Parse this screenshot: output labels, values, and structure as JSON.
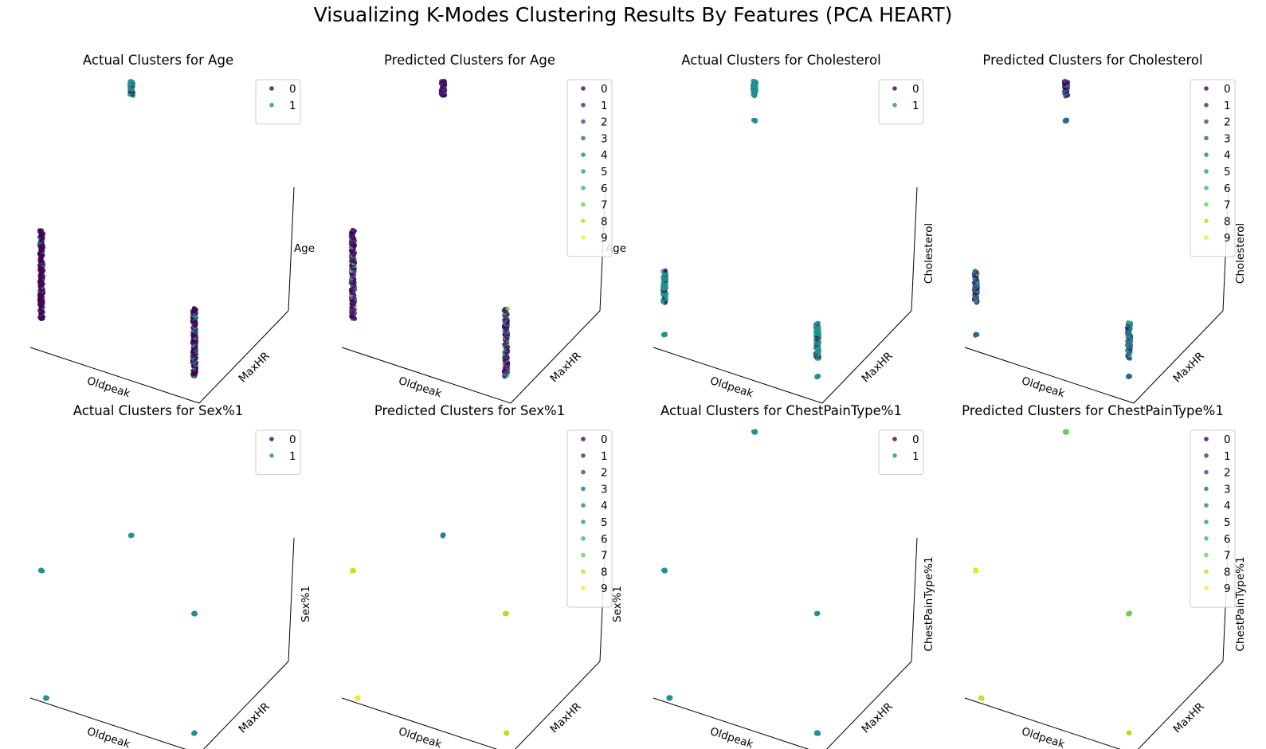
{
  "figure": {
    "title": "Visualizing K-Modes Clustering Results By Features (PCA HEART)"
  },
  "palette": {
    "k2": [
      "#440154",
      "#21918c"
    ],
    "k10": [
      "#440154",
      "#482878",
      "#3e4989",
      "#31688e",
      "#26828e",
      "#1f9e89",
      "#35b779",
      "#6ece58",
      "#b5de2b",
      "#fde725"
    ]
  },
  "chart_data": [
    {
      "type": "scatter",
      "projection": "3d",
      "title": "Actual Clusters for Age",
      "xlabel": "Oldpeak",
      "ylabel": "MaxHR",
      "zlabel": "Age",
      "legend": {
        "placement": "top-right",
        "entries": [
          "0",
          "1"
        ]
      },
      "groups": [
        {
          "label": "left column",
          "x": 0.0,
          "y": 0.0,
          "z_min": 0.22,
          "z_max": 0.92,
          "mix": [
            0.92,
            0.08
          ]
        },
        {
          "label": "middle column",
          "x": 0.72,
          "y": 1.0,
          "z_min": 0.86,
          "z_max": 1.0,
          "mix": [
            0.15,
            0.85
          ]
        },
        {
          "label": "right column",
          "x": 1.0,
          "y": 0.0,
          "z_min": 0.05,
          "z_max": 0.62,
          "mix": [
            0.7,
            0.3
          ]
        }
      ]
    },
    {
      "type": "scatter",
      "projection": "3d",
      "title": "Predicted Clusters for Age",
      "xlabel": "Oldpeak",
      "ylabel": "MaxHR",
      "zlabel": "Age",
      "legend": {
        "placement": "top-right",
        "entries": [
          "0",
          "1",
          "2",
          "3",
          "4",
          "5",
          "6",
          "7",
          "8",
          "9"
        ]
      },
      "groups": [
        {
          "label": "left column",
          "x": 0.0,
          "y": 0.0,
          "z_min": 0.22,
          "z_max": 0.92,
          "mix": [
            0.4,
            0.3,
            0.15,
            0.05,
            0.02,
            0.02,
            0.02,
            0.02,
            0.01,
            0.01
          ]
        },
        {
          "label": "middle column",
          "x": 0.72,
          "y": 1.0,
          "z_min": 0.86,
          "z_max": 1.0,
          "mix": [
            0.5,
            0.35,
            0.15,
            0,
            0,
            0,
            0,
            0,
            0,
            0
          ]
        },
        {
          "label": "right column",
          "x": 1.0,
          "y": 0.0,
          "z_min": 0.05,
          "z_max": 0.62,
          "mix": [
            0.3,
            0.25,
            0.15,
            0.1,
            0.05,
            0.05,
            0.04,
            0.03,
            0.03,
            0
          ]
        }
      ]
    },
    {
      "type": "scatter",
      "projection": "3d",
      "title": "Actual Clusters for Cholesterol",
      "xlabel": "Oldpeak",
      "ylabel": "MaxHR",
      "zlabel": "Cholesterol",
      "legend": {
        "placement": "top-right",
        "entries": [
          "0",
          "1"
        ]
      },
      "groups": [
        {
          "label": "left column",
          "x": 0.0,
          "y": 0.0,
          "z_min": 0.35,
          "z_max": 0.6,
          "mix": [
            0.1,
            0.9
          ]
        },
        {
          "label": "left low point",
          "x": 0.0,
          "y": 0.0,
          "z_min": 0.1,
          "z_max": 0.1,
          "mix": [
            0,
            1
          ]
        },
        {
          "label": "middle column",
          "x": 0.72,
          "y": 1.0,
          "z_min": 0.86,
          "z_max": 1.0,
          "mix": [
            0,
            1
          ]
        },
        {
          "label": "middle low point",
          "x": 0.72,
          "y": 1.0,
          "z_min": 0.62,
          "z_max": 0.62,
          "mix": [
            0,
            1
          ]
        },
        {
          "label": "right column",
          "x": 1.0,
          "y": 0.0,
          "z_min": 0.2,
          "z_max": 0.5,
          "mix": [
            0.1,
            0.9
          ]
        },
        {
          "label": "right low point",
          "x": 1.0,
          "y": 0.0,
          "z_min": 0.05,
          "z_max": 0.05,
          "mix": [
            0,
            1
          ]
        }
      ]
    },
    {
      "type": "scatter",
      "projection": "3d",
      "title": "Predicted Clusters for Cholesterol",
      "xlabel": "Oldpeak",
      "ylabel": "MaxHR",
      "zlabel": "Cholesterol",
      "legend": {
        "placement": "top-right",
        "entries": [
          "0",
          "1",
          "2",
          "3",
          "4",
          "5",
          "6",
          "7",
          "8",
          "9"
        ]
      },
      "groups": [
        {
          "label": "left column",
          "x": 0.0,
          "y": 0.0,
          "z_min": 0.35,
          "z_max": 0.6,
          "mix": [
            0.15,
            0.1,
            0.15,
            0.25,
            0.2,
            0.1,
            0.03,
            0.02,
            0,
            0
          ]
        },
        {
          "label": "left low point",
          "x": 0.0,
          "y": 0.0,
          "z_min": 0.1,
          "z_max": 0.1,
          "mix": [
            0,
            0,
            0,
            1,
            0,
            0,
            0,
            0,
            0,
            0
          ]
        },
        {
          "label": "middle column",
          "x": 0.72,
          "y": 1.0,
          "z_min": 0.86,
          "z_max": 1.0,
          "mix": [
            0.3,
            0.2,
            0.2,
            0.2,
            0.1,
            0,
            0,
            0,
            0,
            0
          ]
        },
        {
          "label": "middle low point",
          "x": 0.72,
          "y": 1.0,
          "z_min": 0.62,
          "z_max": 0.62,
          "mix": [
            0,
            0,
            0,
            1,
            0,
            0,
            0,
            0,
            0,
            0
          ]
        },
        {
          "label": "right column",
          "x": 1.0,
          "y": 0.0,
          "z_min": 0.2,
          "z_max": 0.5,
          "mix": [
            0.1,
            0.05,
            0.1,
            0.25,
            0.25,
            0.15,
            0.05,
            0.05,
            0,
            0
          ]
        },
        {
          "label": "right low point",
          "x": 1.0,
          "y": 0.0,
          "z_min": 0.05,
          "z_max": 0.05,
          "mix": [
            0,
            0,
            0,
            1,
            0,
            0,
            0,
            0,
            0,
            0
          ]
        }
      ]
    },
    {
      "type": "scatter",
      "projection": "3d",
      "title": "Actual Clusters for Sex%1",
      "xlabel": "Oldpeak",
      "ylabel": "MaxHR",
      "zlabel": "Sex%1",
      "legend": {
        "placement": "top-right",
        "entries": [
          "0",
          "1"
        ]
      },
      "groups": [
        {
          "label": "front-left low",
          "x": 0.08,
          "y": 0.0,
          "z_min": 0.0,
          "z_max": 0.0,
          "mix": [
            0,
            1
          ]
        },
        {
          "label": "back-left high",
          "x": 0.0,
          "y": 0.0,
          "z_min": 1.0,
          "z_max": 1.0,
          "mix": [
            0,
            1
          ]
        },
        {
          "label": "back-middle",
          "x": 0.72,
          "y": 1.0,
          "z_min": 0.0,
          "z_max": 0.0,
          "mix": [
            0,
            1
          ]
        },
        {
          "label": "right high",
          "x": 1.0,
          "y": 0.0,
          "z_min": 1.0,
          "z_max": 1.0,
          "mix": [
            0,
            1
          ]
        },
        {
          "label": "right low",
          "x": 1.0,
          "y": 0.0,
          "z_min": 0.0,
          "z_max": 0.0,
          "mix": [
            0,
            1
          ]
        }
      ]
    },
    {
      "type": "scatter",
      "projection": "3d",
      "title": "Predicted Clusters for Sex%1",
      "xlabel": "Oldpeak",
      "ylabel": "MaxHR",
      "zlabel": "Sex%1",
      "legend": {
        "placement": "top-right",
        "entries": [
          "0",
          "1",
          "2",
          "3",
          "4",
          "5",
          "6",
          "7",
          "8",
          "9"
        ]
      },
      "groups": [
        {
          "label": "front-left low",
          "x": 0.08,
          "y": 0.0,
          "z_min": 0.0,
          "z_max": 0.0,
          "mix": [
            0,
            0,
            0,
            0,
            0,
            0,
            0,
            0,
            0.3,
            0.7
          ]
        },
        {
          "label": "back-left high",
          "x": 0.0,
          "y": 0.0,
          "z_min": 1.0,
          "z_max": 1.0,
          "mix": [
            0,
            0,
            0,
            0,
            0,
            0,
            0,
            0,
            0.4,
            0.6
          ]
        },
        {
          "label": "back-middle",
          "x": 0.72,
          "y": 1.0,
          "z_min": 0.0,
          "z_max": 0.0,
          "mix": [
            0,
            0,
            0,
            0,
            1,
            0,
            0,
            0,
            0,
            0
          ]
        },
        {
          "label": "right high",
          "x": 1.0,
          "y": 0.0,
          "z_min": 1.0,
          "z_max": 1.0,
          "mix": [
            0,
            0,
            0,
            0,
            0,
            0,
            0,
            0.5,
            0.5,
            0
          ]
        },
        {
          "label": "right low",
          "x": 1.0,
          "y": 0.0,
          "z_min": 0.0,
          "z_max": 0.0,
          "mix": [
            0,
            0,
            0,
            0,
            0,
            0,
            0,
            0,
            0.5,
            0.5
          ]
        }
      ]
    },
    {
      "type": "scatter",
      "projection": "3d",
      "title": "Actual Clusters for ChestPainType%1",
      "xlabel": "Oldpeak",
      "ylabel": "MaxHR",
      "zlabel": "ChestPainType%1",
      "legend": {
        "placement": "top-right",
        "entries": [
          "0",
          "1"
        ]
      },
      "groups": [
        {
          "label": "front-left low",
          "x": 0.08,
          "y": 0.0,
          "z_min": 0.0,
          "z_max": 0.0,
          "mix": [
            0,
            1
          ]
        },
        {
          "label": "back-left high",
          "x": 0.0,
          "y": 0.0,
          "z_min": 1.0,
          "z_max": 1.0,
          "mix": [
            0,
            1
          ]
        },
        {
          "label": "back-middle high",
          "x": 0.72,
          "y": 1.0,
          "z_min": 1.0,
          "z_max": 1.0,
          "mix": [
            0,
            1
          ]
        },
        {
          "label": "right high",
          "x": 1.0,
          "y": 0.0,
          "z_min": 1.0,
          "z_max": 1.0,
          "mix": [
            0,
            1
          ]
        },
        {
          "label": "right low",
          "x": 1.0,
          "y": 0.0,
          "z_min": 0.0,
          "z_max": 0.0,
          "mix": [
            0,
            1
          ]
        }
      ]
    },
    {
      "type": "scatter",
      "projection": "3d",
      "title": "Predicted Clusters for ChestPainType%1",
      "xlabel": "Oldpeak",
      "ylabel": "MaxHR",
      "zlabel": "ChestPainType%1",
      "legend": {
        "placement": "top-right",
        "entries": [
          "0",
          "1",
          "2",
          "3",
          "4",
          "5",
          "6",
          "7",
          "8",
          "9"
        ]
      },
      "groups": [
        {
          "label": "front-left low",
          "x": 0.08,
          "y": 0.0,
          "z_min": 0.0,
          "z_max": 0.0,
          "mix": [
            0,
            0,
            0,
            0,
            0,
            0,
            0,
            0,
            0.3,
            0.7
          ]
        },
        {
          "label": "back-left high",
          "x": 0.0,
          "y": 0.0,
          "z_min": 1.0,
          "z_max": 1.0,
          "mix": [
            0,
            0,
            0,
            0,
            0,
            0,
            0,
            0,
            0.4,
            0.6
          ]
        },
        {
          "label": "back-middle high",
          "x": 0.72,
          "y": 1.0,
          "z_min": 1.0,
          "z_max": 1.0,
          "mix": [
            0,
            0,
            0,
            0,
            0,
            0,
            0.3,
            0.7,
            0,
            0
          ]
        },
        {
          "label": "right high",
          "x": 1.0,
          "y": 0.0,
          "z_min": 1.0,
          "z_max": 1.0,
          "mix": [
            0,
            0,
            0,
            0,
            0,
            0,
            0,
            0.5,
            0.5,
            0
          ]
        },
        {
          "label": "right low",
          "x": 1.0,
          "y": 0.0,
          "z_min": 0.0,
          "z_max": 0.0,
          "mix": [
            0,
            0,
            0,
            0,
            0,
            0,
            0,
            0,
            0.5,
            0.5
          ]
        }
      ]
    }
  ]
}
